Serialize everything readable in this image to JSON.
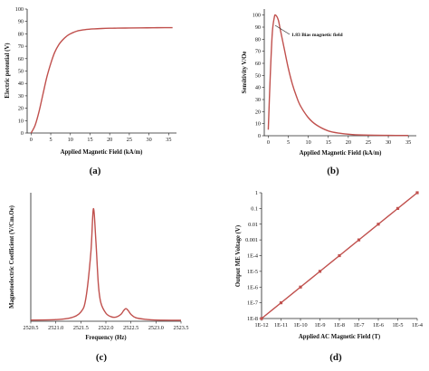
{
  "chart_data": [
    {
      "panel": "(a)",
      "type": "line",
      "xlabel": "Applied Magnetic Field (kA/m)",
      "ylabel": "Electric potential (V)",
      "xlim": [
        -1,
        37
      ],
      "ylim": [
        0,
        100
      ],
      "xticks": [
        0,
        5,
        10,
        15,
        20,
        25,
        30,
        35
      ],
      "yticks": [
        0,
        10,
        20,
        30,
        40,
        50,
        60,
        70,
        80,
        90,
        100
      ],
      "x_tick_labels": [
        "0",
        "5",
        "10",
        "15",
        "20",
        "25",
        "30",
        "35"
      ],
      "y_tick_labels": [
        "0",
        "10",
        "20",
        "30",
        "40",
        "50",
        "60",
        "70",
        "80",
        "90",
        "100"
      ],
      "series": [
        {
          "color": "#c0504d",
          "x": [
            0,
            1,
            2,
            3,
            4,
            5,
            6,
            7,
            8,
            9,
            10,
            12,
            14,
            16,
            18,
            20,
            22,
            25,
            28,
            31,
            34,
            36
          ],
          "y": [
            0,
            6,
            17,
            31,
            45,
            56,
            65,
            71,
            75,
            78,
            80,
            82.5,
            83.5,
            84,
            84.3,
            84.5,
            84.6,
            84.7,
            84.8,
            84.9,
            85,
            85
          ]
        }
      ]
    },
    {
      "panel": "(b)",
      "type": "line",
      "xlabel": "Applied Magnetic Field (kA/m)",
      "ylabel": "Sensitivity V/Oe",
      "xlim": [
        -1,
        37
      ],
      "ylim": [
        0,
        105
      ],
      "xticks": [
        0,
        5,
        10,
        15,
        20,
        25,
        30,
        35
      ],
      "yticks": [
        0,
        10,
        20,
        30,
        40,
        50,
        60,
        70,
        80,
        90,
        100
      ],
      "x_tick_labels": [
        "0",
        "5",
        "10",
        "15",
        "20",
        "25",
        "30",
        "35"
      ],
      "y_tick_labels": [
        "0",
        "10",
        "20",
        "30",
        "40",
        "50",
        "60",
        "70",
        "80",
        "90",
        "100"
      ],
      "annotations": [
        {
          "text": "1.83  Bias magnetic field",
          "x": 1.83,
          "y": 100
        }
      ],
      "series": [
        {
          "color": "#c0504d",
          "x": [
            0,
            0.5,
            1,
            1.5,
            1.83,
            2.5,
            3,
            4,
            5,
            6,
            7,
            8,
            10,
            12,
            15,
            18,
            21,
            25,
            30,
            35
          ],
          "y": [
            5,
            50,
            85,
            98,
            100,
            96,
            88,
            72,
            56,
            43,
            33,
            25,
            15,
            9,
            4,
            2,
            1,
            0.5,
            0.3,
            0.2
          ]
        }
      ]
    },
    {
      "panel": "(c)",
      "type": "line",
      "xlabel": "Frequency (Hz)",
      "ylabel": "Magnetoelectric Coefficient (V/Cm.Oe)",
      "xlim": [
        2520.5,
        2523.5
      ],
      "ylim": [
        0,
        5.6
      ],
      "xticks": [
        2520.5,
        2521.0,
        2521.5,
        2522.0,
        2522.5,
        2523.0,
        2523.5
      ],
      "x_tick_labels": [
        "2520.5",
        "2521.0",
        "2521.5",
        "2522.0",
        "2522.5",
        "2523.0",
        "2523.5"
      ],
      "y_tick_labels": [],
      "series": [
        {
          "color": "#c0504d",
          "x": [
            2520.5,
            2521.0,
            2521.3,
            2521.5,
            2521.6,
            2521.7,
            2521.75,
            2521.8,
            2521.85,
            2521.9,
            2522.0,
            2522.1,
            2522.2,
            2522.3,
            2522.35,
            2522.4,
            2522.45,
            2522.5,
            2522.6,
            2522.8,
            2523.0,
            2523.5
          ],
          "y": [
            0.05,
            0.07,
            0.15,
            0.4,
            1.0,
            3.0,
            4.9,
            3.5,
            1.6,
            0.8,
            0.35,
            0.2,
            0.18,
            0.3,
            0.45,
            0.55,
            0.45,
            0.3,
            0.15,
            0.08,
            0.05,
            0.04
          ]
        }
      ]
    },
    {
      "panel": "(d)",
      "type": "scatter",
      "xlabel": "Applied AC Magnetic Field (T)",
      "ylabel": "Output ME Voltage (V)",
      "x_scale": "log",
      "y_scale": "log",
      "xlim": [
        1e-12,
        0.0001
      ],
      "ylim": [
        1e-08,
        1
      ],
      "x_tick_labels": [
        "1E-12",
        "1E-11",
        "1E-10",
        "1E-9",
        "1E-8",
        "1E-7",
        "1E-6",
        "1E-5",
        "1E-4"
      ],
      "y_tick_labels": [
        "1",
        "0.1",
        "0.01",
        "0.001",
        "1E-4",
        "1E-5",
        "1E-6",
        "1E-7",
        "1E-8"
      ],
      "series": [
        {
          "color": "#c0504d",
          "x": [
            1e-12,
            1e-11,
            1e-10,
            1e-09,
            1e-08,
            1e-07,
            1e-06,
            1e-05,
            0.0001
          ],
          "y": [
            1e-08,
            1e-07,
            1e-06,
            1e-05,
            0.0001,
            0.001,
            0.01,
            0.1,
            1
          ]
        }
      ]
    }
  ]
}
